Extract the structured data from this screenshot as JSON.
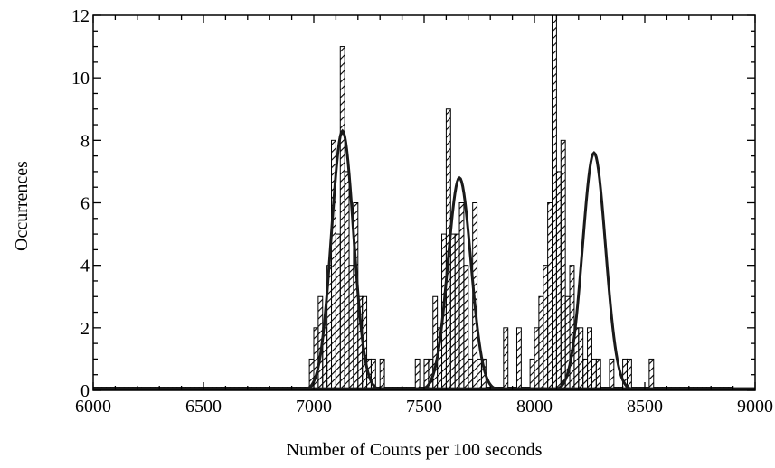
{
  "chart_data": {
    "type": "bar",
    "title": "",
    "xlabel": "Number of Counts per 100 seconds",
    "ylabel": "Occurrences",
    "xlim": [
      6000,
      9000
    ],
    "ylim": [
      0,
      12
    ],
    "xticks": [
      "6000",
      "6500",
      "7000",
      "7500",
      "8000",
      "8500",
      "9000"
    ],
    "yticks": [
      "0",
      "2",
      "4",
      "6",
      "8",
      "10",
      "12"
    ],
    "grid": false,
    "legend": "none",
    "bin_width": 20,
    "colors": {
      "bar_fill": "#ffffff",
      "hatch": "#000000",
      "curve": "#1a1a1a",
      "axis": "#000000"
    },
    "histogram": {
      "bin_left": [
        6000,
        6020,
        6040,
        6060,
        6080,
        6100,
        6120,
        6140,
        6160,
        6180,
        6200,
        6220,
        6240,
        6260,
        6280,
        6300,
        6320,
        6340,
        6360,
        6380,
        6400,
        6420,
        6440,
        6460,
        6480,
        6500,
        6520,
        6540,
        6560,
        6580,
        6600,
        6620,
        6640,
        6660,
        6680,
        6700,
        6720,
        6740,
        6760,
        6780,
        6800,
        6820,
        6840,
        6860,
        6880,
        6900,
        6920,
        6940,
        6960,
        6980,
        7000,
        7020,
        7040,
        7060,
        7080,
        7100,
        7120,
        7140,
        7160,
        7180,
        7200,
        7220,
        7240,
        7260,
        7280,
        7300,
        7320,
        7340,
        7360,
        7380,
        7400,
        7420,
        7440,
        7460,
        7480,
        7500,
        7520,
        7540,
        7560,
        7580,
        7600,
        7620,
        7640,
        7660,
        7680,
        7700,
        7720,
        7740,
        7760,
        7780,
        7800,
        7820,
        7840,
        7860,
        7880,
        7900,
        7920,
        7940,
        7960,
        7980,
        8000,
        8020,
        8040,
        8060,
        8080,
        8100,
        8120,
        8140,
        8160,
        8180,
        8200,
        8220,
        8240,
        8260,
        8280,
        8300,
        8320,
        8340,
        8360,
        8380,
        8400,
        8420,
        8440,
        8460,
        8480,
        8500,
        8520,
        8540,
        8560,
        8580,
        8600,
        8620,
        8640,
        8660,
        8680,
        8700,
        8720,
        8740,
        8760,
        8780,
        8800,
        8820,
        8840,
        8860,
        8880,
        8900,
        8920,
        8940,
        8960
      ],
      "counts": [
        0.1,
        0.1,
        0.1,
        0.1,
        0.1,
        0.1,
        0.1,
        0.1,
        0.1,
        0.1,
        0.1,
        0.1,
        0.1,
        0.1,
        0.1,
        0.1,
        0.1,
        0.1,
        0.1,
        0.1,
        0.1,
        0.1,
        0.1,
        0.1,
        0.1,
        0.1,
        0.1,
        0.1,
        0.1,
        0.1,
        0.1,
        0.1,
        0.1,
        0.1,
        0.1,
        0.1,
        0.1,
        0.1,
        0.1,
        0.1,
        0.1,
        0.1,
        0.1,
        0.1,
        0.1,
        0.1,
        0.1,
        0.1,
        0.1,
        1,
        2,
        3,
        2,
        4,
        8,
        5,
        11,
        7,
        4,
        6,
        3,
        3,
        1,
        1,
        0.1,
        1,
        0.1,
        0.1,
        0.1,
        0.1,
        0.1,
        0.1,
        0.1,
        1,
        0.1,
        1,
        1,
        3,
        2,
        5,
        9,
        5,
        5,
        6,
        4,
        1,
        6,
        1,
        1,
        0.1,
        0.1,
        0.1,
        0.1,
        2,
        0.1,
        0.1,
        2,
        0.1,
        0.1,
        1,
        2,
        3,
        4,
        6,
        12,
        7,
        8,
        3,
        4,
        2,
        2,
        1,
        2,
        1,
        1,
        0.1,
        0.1,
        1,
        0.1,
        0.1,
        1,
        1,
        0.1,
        0.1,
        0.1,
        0.1,
        1,
        0.1,
        0.1,
        0.1,
        0.1,
        0.1,
        0.1,
        0.1,
        0.1,
        0.1,
        0.1,
        0.1,
        0.1,
        0.1,
        0.1,
        0.1,
        0.1,
        0.1,
        0.1
      ]
    },
    "fits": [
      {
        "type": "gaussian",
        "mean": 7130,
        "sigma": 50,
        "peak": 8.3
      },
      {
        "type": "gaussian",
        "mean": 7660,
        "sigma": 52,
        "peak": 6.8
      },
      {
        "type": "gaussian",
        "mean": 8270,
        "sigma": 52,
        "peak": 7.6
      }
    ]
  }
}
